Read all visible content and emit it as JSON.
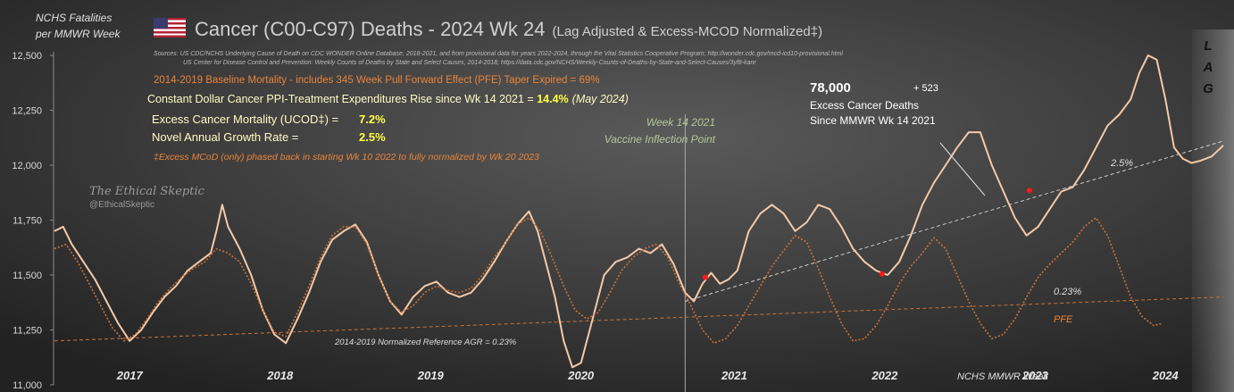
{
  "chart_data": {
    "type": "line",
    "title": "Cancer (C00-C97) Deaths - 2024 Wk 24",
    "title_suffix": "(Lag Adjusted & Excess-MCOD Normalized‡)",
    "ylabel_line1": "NCHS Fatalities",
    "ylabel_line2": "per MMWR Week",
    "xlabel": "NCHS MMWR Week",
    "ylim": [
      11000,
      12580
    ],
    "y_ticks": [
      11000,
      11250,
      11500,
      11750,
      12000,
      12250,
      12500
    ],
    "y_tick_labels": [
      "11,000",
      "11,250",
      "11,500",
      "11,750",
      "12,000",
      "12,250",
      "12,500"
    ],
    "x_range_weeks": [
      0,
      390
    ],
    "year_labels": [
      {
        "label": "2017",
        "week": 26
      },
      {
        "label": "2018",
        "week": 78
      },
      {
        "label": "2019",
        "week": 130
      },
      {
        "label": "2020",
        "week": 182
      },
      {
        "label": "2021",
        "week": 235
      },
      {
        "label": "2022",
        "week": 287
      },
      {
        "label": "2023",
        "week": 339
      },
      {
        "label": "2024",
        "week": 384
      }
    ],
    "series": [
      {
        "name": "Cancer deaths (lag adjusted, excess-MCOD normalized)",
        "color": "#f5c9a8",
        "points": [
          [
            0,
            11700
          ],
          [
            3,
            11720
          ],
          [
            6,
            11640
          ],
          [
            10,
            11560
          ],
          [
            14,
            11480
          ],
          [
            18,
            11380
          ],
          [
            22,
            11280
          ],
          [
            26,
            11200
          ],
          [
            30,
            11250
          ],
          [
            34,
            11330
          ],
          [
            38,
            11400
          ],
          [
            42,
            11450
          ],
          [
            46,
            11520
          ],
          [
            50,
            11560
          ],
          [
            54,
            11600
          ],
          [
            56,
            11700
          ],
          [
            58,
            11820
          ],
          [
            60,
            11720
          ],
          [
            64,
            11620
          ],
          [
            68,
            11500
          ],
          [
            72,
            11340
          ],
          [
            76,
            11230
          ],
          [
            80,
            11190
          ],
          [
            84,
            11300
          ],
          [
            88,
            11420
          ],
          [
            92,
            11560
          ],
          [
            96,
            11660
          ],
          [
            100,
            11700
          ],
          [
            104,
            11730
          ],
          [
            108,
            11650
          ],
          [
            112,
            11500
          ],
          [
            116,
            11380
          ],
          [
            120,
            11320
          ],
          [
            124,
            11400
          ],
          [
            128,
            11450
          ],
          [
            132,
            11470
          ],
          [
            136,
            11420
          ],
          [
            140,
            11400
          ],
          [
            144,
            11420
          ],
          [
            148,
            11480
          ],
          [
            152,
            11560
          ],
          [
            156,
            11650
          ],
          [
            160,
            11730
          ],
          [
            164,
            11790
          ],
          [
            167,
            11700
          ],
          [
            170,
            11550
          ],
          [
            173,
            11400
          ],
          [
            176,
            11200
          ],
          [
            179,
            11080
          ],
          [
            182,
            11100
          ],
          [
            186,
            11300
          ],
          [
            190,
            11500
          ],
          [
            194,
            11560
          ],
          [
            198,
            11580
          ],
          [
            202,
            11620
          ],
          [
            206,
            11600
          ],
          [
            210,
            11640
          ],
          [
            214,
            11550
          ],
          [
            218,
            11420
          ],
          [
            221,
            11380
          ],
          [
            224,
            11460
          ],
          [
            227,
            11510
          ],
          [
            230,
            11460
          ],
          [
            233,
            11480
          ],
          [
            236,
            11520
          ],
          [
            240,
            11700
          ],
          [
            244,
            11780
          ],
          [
            248,
            11820
          ],
          [
            252,
            11780
          ],
          [
            256,
            11700
          ],
          [
            260,
            11740
          ],
          [
            264,
            11820
          ],
          [
            268,
            11800
          ],
          [
            272,
            11720
          ],
          [
            276,
            11620
          ],
          [
            280,
            11560
          ],
          [
            284,
            11520
          ],
          [
            288,
            11500
          ],
          [
            292,
            11560
          ],
          [
            296,
            11680
          ],
          [
            300,
            11820
          ],
          [
            304,
            11920
          ],
          [
            308,
            12000
          ],
          [
            312,
            12080
          ],
          [
            316,
            12150
          ],
          [
            320,
            12150
          ],
          [
            324,
            12000
          ],
          [
            328,
            11880
          ],
          [
            332,
            11760
          ],
          [
            336,
            11680
          ],
          [
            340,
            11720
          ],
          [
            344,
            11800
          ],
          [
            348,
            11880
          ],
          [
            352,
            11900
          ],
          [
            356,
            11980
          ],
          [
            360,
            12080
          ],
          [
            364,
            12180
          ],
          [
            368,
            12230
          ],
          [
            372,
            12300
          ],
          [
            375,
            12420
          ],
          [
            378,
            12500
          ],
          [
            381,
            12480
          ],
          [
            384,
            12300
          ],
          [
            387,
            12080
          ],
          [
            390,
            12030
          ],
          [
            393,
            12010
          ],
          [
            396,
            12020
          ],
          [
            400,
            12040
          ],
          [
            404,
            12090
          ]
        ]
      },
      {
        "name": "2014-2019 Baseline Mortality (PFE)",
        "color": "#c9733a",
        "points": [
          [
            0,
            11620
          ],
          [
            4,
            11640
          ],
          [
            8,
            11560
          ],
          [
            12,
            11460
          ],
          [
            16,
            11360
          ],
          [
            20,
            11260
          ],
          [
            24,
            11200
          ],
          [
            28,
            11230
          ],
          [
            32,
            11300
          ],
          [
            36,
            11380
          ],
          [
            40,
            11440
          ],
          [
            44,
            11490
          ],
          [
            48,
            11530
          ],
          [
            52,
            11560
          ],
          [
            56,
            11620
          ],
          [
            60,
            11600
          ],
          [
            64,
            11560
          ],
          [
            68,
            11460
          ],
          [
            72,
            11340
          ],
          [
            76,
            11240
          ],
          [
            80,
            11220
          ],
          [
            84,
            11330
          ],
          [
            88,
            11450
          ],
          [
            92,
            11580
          ],
          [
            96,
            11680
          ],
          [
            100,
            11720
          ],
          [
            104,
            11720
          ],
          [
            108,
            11640
          ],
          [
            112,
            11500
          ],
          [
            116,
            11380
          ],
          [
            120,
            11330
          ],
          [
            124,
            11360
          ],
          [
            128,
            11420
          ],
          [
            132,
            11450
          ],
          [
            136,
            11430
          ],
          [
            140,
            11420
          ],
          [
            144,
            11440
          ],
          [
            148,
            11500
          ],
          [
            152,
            11580
          ],
          [
            156,
            11650
          ],
          [
            160,
            11730
          ],
          [
            164,
            11760
          ],
          [
            168,
            11700
          ],
          [
            172,
            11580
          ],
          [
            176,
            11450
          ],
          [
            180,
            11340
          ],
          [
            184,
            11300
          ],
          [
            188,
            11330
          ],
          [
            192,
            11420
          ],
          [
            196,
            11520
          ],
          [
            200,
            11580
          ],
          [
            204,
            11620
          ],
          [
            208,
            11640
          ],
          [
            212,
            11580
          ],
          [
            216,
            11460
          ],
          [
            220,
            11360
          ],
          [
            224,
            11250
          ],
          [
            228,
            11190
          ],
          [
            232,
            11210
          ],
          [
            236,
            11270
          ],
          [
            240,
            11360
          ],
          [
            244,
            11450
          ],
          [
            248,
            11540
          ],
          [
            252,
            11610
          ],
          [
            256,
            11680
          ],
          [
            260,
            11650
          ],
          [
            264,
            11530
          ],
          [
            268,
            11400
          ],
          [
            272,
            11280
          ],
          [
            276,
            11200
          ],
          [
            280,
            11210
          ],
          [
            284,
            11270
          ],
          [
            288,
            11360
          ],
          [
            292,
            11460
          ],
          [
            296,
            11540
          ],
          [
            300,
            11600
          ],
          [
            304,
            11670
          ],
          [
            308,
            11620
          ],
          [
            312,
            11500
          ],
          [
            316,
            11380
          ],
          [
            320,
            11280
          ],
          [
            324,
            11210
          ],
          [
            328,
            11230
          ],
          [
            332,
            11300
          ],
          [
            336,
            11400
          ],
          [
            340,
            11490
          ],
          [
            344,
            11550
          ],
          [
            348,
            11600
          ],
          [
            352,
            11650
          ],
          [
            356,
            11720
          ],
          [
            360,
            11760
          ],
          [
            364,
            11680
          ],
          [
            368,
            11540
          ],
          [
            372,
            11400
          ],
          [
            376,
            11310
          ],
          [
            380,
            11270
          ],
          [
            383,
            11280
          ]
        ]
      }
    ],
    "trend_lines": [
      {
        "name": "2014-2019 Normalized Reference AGR = 0.23%",
        "color": "#c9733a",
        "from": [
          0,
          11200
        ],
        "to": [
          404,
          11400
        ]
      },
      {
        "name": "2.5%",
        "color": "#cfcfcf",
        "from": [
          218,
          11380
        ],
        "to": [
          404,
          12110
        ]
      }
    ],
    "markers": [
      {
        "x": 225,
        "y": 11490
      },
      {
        "x": 286,
        "y": 11505
      },
      {
        "x": 337,
        "y": 11885
      }
    ],
    "vaccine_line_week": 218,
    "annotations": {
      "week14_line1": "Week 14 2021",
      "week14_line2": "Vaccine Inflection Point",
      "reference_agr": "2014-2019 Normalized Reference AGR = 0.23%",
      "pfe_label": "PFE",
      "agr_label": "0.23%",
      "trend_label": "2.5%",
      "lag_letters": [
        "L",
        "A",
        "G"
      ]
    }
  },
  "sources": {
    "line1": "Sources:   US CDC/NCHS Underlying Cause of Death on CDC WONDER Online Database, 2018-2021, and from provisional data for years 2022-2024, through the Vital Statistics Cooperative Program; http://wonder.cdc.gov/mcd-icd10-provisional.html",
    "line2": "US Center for Disease Control and Prevention: Weekly Counts of Deaths by State and Select Causes, 2014-2018; https://data.cdc.gov/NCHS/Weekly-Counts-of-Deaths-by-State-and-Select-Causes/3yf8-kanr"
  },
  "info": {
    "baseline_text": "2014-2019 Baseline Mortality - includes 345 Week Pull Forward Effect (PFE) Taper Expired =   69%",
    "ppi_prefix": "Constant Dollar Cancer PPI-Treatment Expenditures Rise since Wk 14 2021 = ",
    "ppi_value": "14.4%",
    "ppi_date": "(May 2024)",
    "excess_label": "Excess Cancer Mortality (UCOD‡) =",
    "excess_value": "7.2%",
    "growth_label": "Novel Annual Growth Rate =",
    "growth_value": "2.5%",
    "footnote": "‡Excess MCoD (only) phased back in starting Wk 10 2022 to fully normalized by Wk 20 2023"
  },
  "excess_box": {
    "deaths": "78,000",
    "plus": "+ 523",
    "line1": "Excess Cancer Deaths",
    "line2": "Since MMWR Wk 14 2021"
  },
  "watermark": {
    "name": "The Ethical Skeptic",
    "handle": "@EthicalSkeptic"
  },
  "colors": {
    "background": "#2b2b2b",
    "cancer_line": "#f5c9a8",
    "baseline": "#c9733a",
    "highlight_yellow": "#ffff66",
    "title": "#d0d0d0",
    "vaccine_text": "#b5c79a"
  }
}
